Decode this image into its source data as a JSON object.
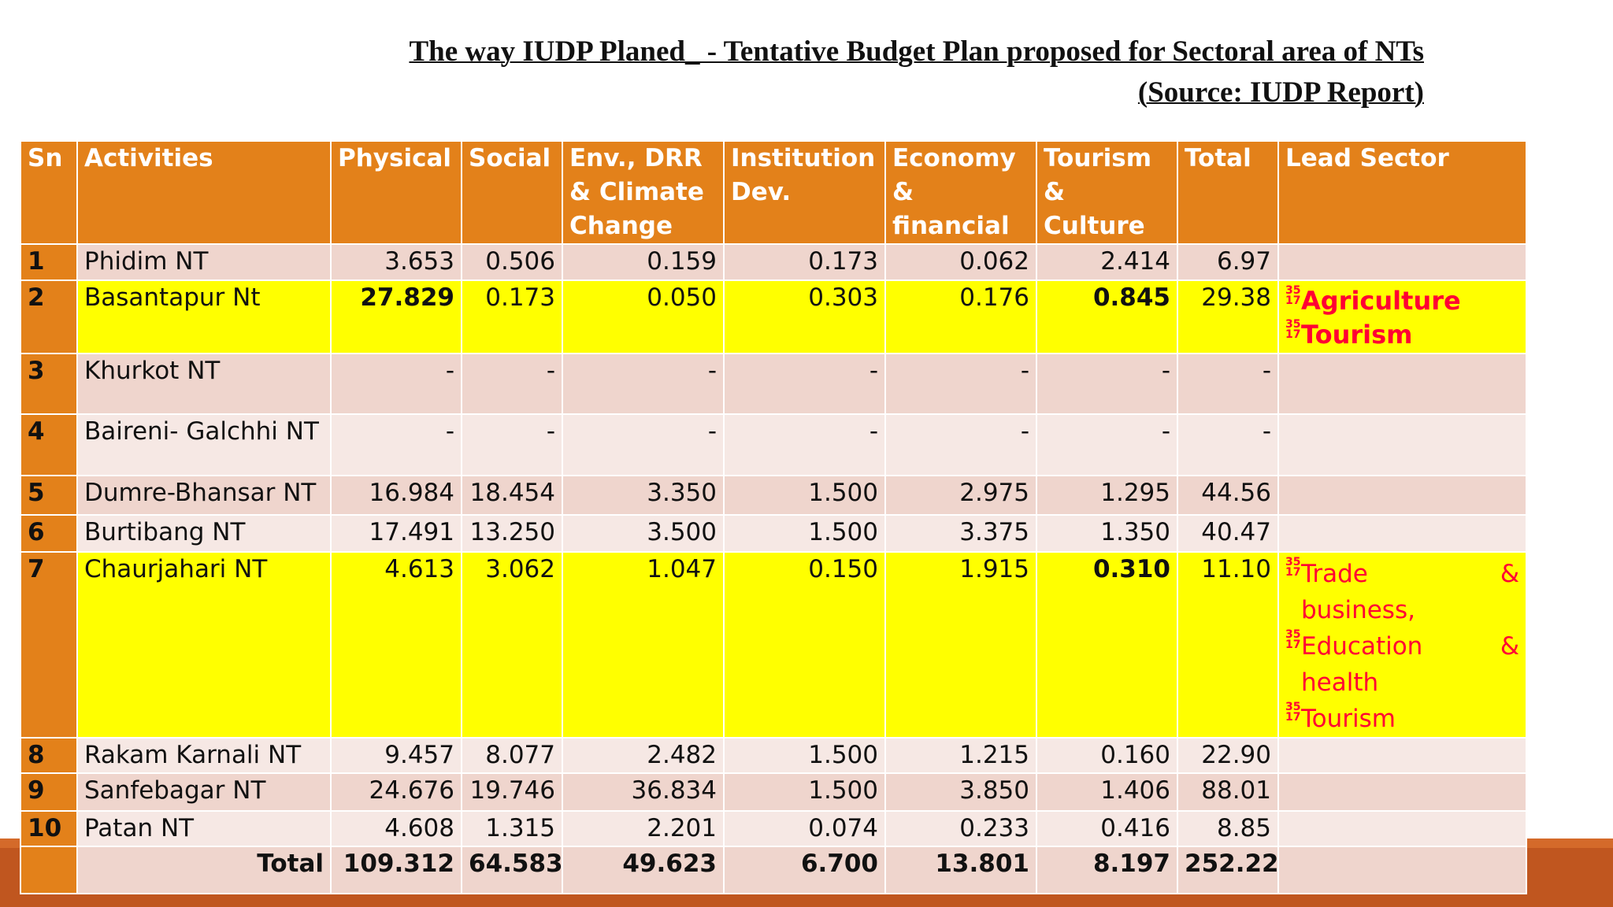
{
  "title": {
    "line1": "The way IUDP Planed_ - Tentative Budget Plan proposed for Sectoral area of NTs",
    "line2": "(Source: IUDP Report)"
  },
  "table": {
    "headers": {
      "sn": "Sn",
      "activities": "Activities",
      "physical": "Physical",
      "social": "Social",
      "env": "Env., DRR & Climate Change",
      "institution": "Institution Dev.",
      "economy": "Economy & financial",
      "tourism": "Tourism & Culture",
      "total": "Total",
      "lead": "Lead Sector"
    },
    "bullet_glyph": "35 17",
    "rows": [
      {
        "sn": "1",
        "activity": "Phidim NT",
        "physical": "3.653",
        "social": "0.506",
        "env": "0.159",
        "institution": "0.173",
        "economy": "0.062",
        "tourism": "2.414",
        "total": "6.97"
      },
      {
        "sn": "2",
        "activity": "Basantapur Nt",
        "physical": "27.829",
        "social": "0.173",
        "env": "0.050",
        "institution": "0.303",
        "economy": "0.176",
        "tourism": "0.845",
        "total": "29.38",
        "lead": [
          "Agriculture",
          "Tourism"
        ]
      },
      {
        "sn": "3",
        "activity": "Khurkot NT",
        "physical": "-",
        "social": "-",
        "env": "-",
        "institution": "-",
        "economy": "-",
        "tourism": "-",
        "total": "-"
      },
      {
        "sn": "4",
        "activity": "Baireni- Galchhi NT",
        "physical": "-",
        "social": "-",
        "env": "-",
        "institution": "-",
        "economy": "-",
        "tourism": "-",
        "total": "-"
      },
      {
        "sn": "5",
        "activity": "Dumre-Bhansar NT",
        "physical": "16.984",
        "social": "18.454",
        "env": "3.350",
        "institution": "1.500",
        "economy": "2.975",
        "tourism": "1.295",
        "total": "44.56"
      },
      {
        "sn": "6",
        "activity": "Burtibang NT",
        "physical": "17.491",
        "social": "13.250",
        "env": "3.500",
        "institution": "1.500",
        "economy": "3.375",
        "tourism": "1.350",
        "total": "40.47"
      },
      {
        "sn": "7",
        "activity": "Chaurjahari NT",
        "physical": "4.613",
        "social": "3.062",
        "env": "1.047",
        "institution": "0.150",
        "economy": "1.915",
        "tourism": "0.310",
        "total": "11.10",
        "lead": [
          {
            "text": "Trade",
            "amp": "&",
            "cont": "business,"
          },
          {
            "text": "Education",
            "amp": "&",
            "cont": "health"
          },
          {
            "text": "Tourism"
          }
        ]
      },
      {
        "sn": "8",
        "activity": "Rakam Karnali NT",
        "physical": "9.457",
        "social": "8.077",
        "env": "2.482",
        "institution": "1.500",
        "economy": "1.215",
        "tourism": "0.160",
        "total": "22.90"
      },
      {
        "sn": "9",
        "activity": "Sanfebagar NT",
        "physical": "24.676",
        "social": "19.746",
        "env": "36.834",
        "institution": "1.500",
        "economy": "3.850",
        "tourism": "1.406",
        "total": "88.01"
      },
      {
        "sn": "10",
        "activity": "Patan NT",
        "physical": "4.608",
        "social": "1.315",
        "env": "2.201",
        "institution": "0.074",
        "economy": "0.233",
        "tourism": "0.416",
        "total": "8.85"
      }
    ],
    "total_row": {
      "label": "Total",
      "physical": "109.312",
      "social": "64.583",
      "env": "49.623",
      "institution": "6.700",
      "economy": "13.801",
      "tourism": "8.197",
      "total": "252.22"
    }
  },
  "colors": {
    "header": "#e3811a",
    "highlight_row": "#ffff00",
    "highlight_text": "#ff0033",
    "row_a": "#efd5cd",
    "row_b": "#f6e8e4",
    "footer_band": "#c0561f"
  }
}
